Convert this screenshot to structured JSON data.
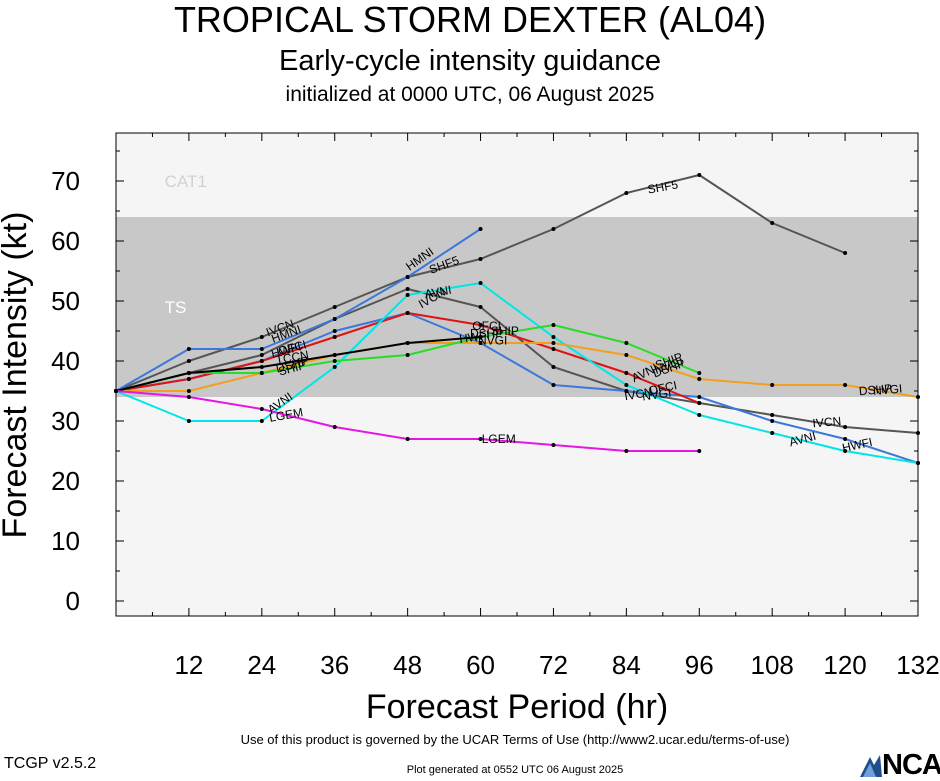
{
  "header": {
    "title": "TROPICAL STORM DEXTER (AL04)",
    "subtitle": "Early-cycle intensity guidance",
    "init": "initialized at 0000 UTC, 06 August 2025"
  },
  "footer": {
    "terms": "Use of this product is governed by the UCAR Terms of Use (http://www2.ucar.edu/terms-of-use)",
    "generated": "Plot generated at 0552 UTC   06 August 2025",
    "version": "TCGP v2.5.2",
    "logo": "NCAR"
  },
  "colors": {
    "ts_band": "#c8c8c8",
    "plot_bg": "#f5f5f5",
    "band_text": "#ffffff",
    "cat1_text": "#d2d2d2"
  },
  "chart_data": {
    "type": "line",
    "xlabel": "Forecast Period (hr)",
    "ylabel": "Forecast Intensity (kt)",
    "xlim": [
      0,
      132
    ],
    "ylim": [
      -2.5,
      78
    ],
    "xticks": [
      12,
      24,
      36,
      48,
      60,
      72,
      84,
      96,
      108,
      120,
      132
    ],
    "yticks": [
      0,
      10,
      20,
      30,
      40,
      50,
      60,
      70
    ],
    "grid": false,
    "bands": [
      {
        "label": "TS",
        "from": 34,
        "to": 64,
        "color": "#c8c8c8",
        "label_at": [
          8,
          49
        ]
      },
      {
        "label": "CAT1",
        "from": 64,
        "to": 78,
        "color": "#f5f5f5",
        "label_at": [
          8,
          70
        ]
      }
    ],
    "series": [
      {
        "name": "SHF5",
        "color": "#555555",
        "points": [
          [
            0,
            35
          ],
          [
            12,
            40
          ],
          [
            24,
            44
          ],
          [
            36,
            49
          ],
          [
            48,
            54
          ],
          [
            60,
            57
          ],
          [
            72,
            62
          ],
          [
            84,
            68
          ],
          [
            96,
            71
          ],
          [
            108,
            63
          ],
          [
            120,
            58
          ]
        ],
        "labels": [
          {
            "x": 54,
            "y": 56,
            "rot": -20
          },
          {
            "x": 90,
            "y": 69,
            "rot": -10
          }
        ]
      },
      {
        "name": "IVCN",
        "color": "#555555",
        "points": [
          [
            0,
            35
          ],
          [
            12,
            38
          ],
          [
            24,
            41
          ],
          [
            36,
            47
          ],
          [
            48,
            52
          ],
          [
            60,
            49
          ],
          [
            72,
            39
          ],
          [
            84,
            35
          ],
          [
            96,
            33
          ],
          [
            108,
            31
          ],
          [
            120,
            29
          ],
          [
            132,
            28
          ]
        ],
        "labels": [
          {
            "x": 27,
            "y": 45.5,
            "rot": -20
          },
          {
            "x": 52,
            "y": 50.5,
            "rot": -30
          },
          {
            "x": 86,
            "y": 34.5,
            "rot": -10
          },
          {
            "x": 117,
            "y": 29.8,
            "rot": -5
          }
        ]
      },
      {
        "name": "HMNI",
        "color": "#3c78dc",
        "points": [
          [
            0,
            35
          ],
          [
            12,
            42
          ],
          [
            24,
            42
          ],
          [
            36,
            47
          ],
          [
            48,
            54
          ],
          [
            60,
            62
          ]
        ],
        "labels": [
          {
            "x": 28,
            "y": 44.5,
            "rot": -20
          },
          {
            "x": 50,
            "y": 57,
            "rot": -35
          }
        ]
      },
      {
        "name": "HWFI",
        "color": "#3c78dc",
        "points": [
          [
            0,
            35
          ],
          [
            12,
            37
          ],
          [
            24,
            40
          ],
          [
            36,
            45
          ],
          [
            48,
            48
          ],
          [
            60,
            43
          ],
          [
            72,
            36
          ],
          [
            84,
            35
          ],
          [
            96,
            34
          ],
          [
            108,
            30
          ],
          [
            120,
            27
          ],
          [
            132,
            23
          ]
        ],
        "labels": [
          {
            "x": 28,
            "y": 41.8,
            "rot": -15
          },
          {
            "x": 59,
            "y": 44,
            "rot": -8
          },
          {
            "x": 122,
            "y": 26,
            "rot": -12
          }
        ]
      },
      {
        "name": "OFCI",
        "color": "#dc1414",
        "points": [
          [
            0,
            35
          ],
          [
            12,
            37
          ],
          [
            24,
            40
          ],
          [
            36,
            44
          ],
          [
            48,
            48
          ],
          [
            60,
            46
          ],
          [
            72,
            42
          ],
          [
            84,
            38
          ],
          [
            96,
            33
          ]
        ],
        "labels": [
          {
            "x": 29,
            "y": 42.2,
            "rot": -15
          },
          {
            "x": 61,
            "y": 45.8,
            "rot": 0
          },
          {
            "x": 90,
            "y": 35.5,
            "rot": -12
          }
        ]
      },
      {
        "name": "AVNI",
        "color": "#00e6e6",
        "points": [
          [
            0,
            35
          ],
          [
            12,
            30
          ],
          [
            24,
            30
          ],
          [
            36,
            39
          ],
          [
            48,
            51
          ],
          [
            60,
            53
          ],
          [
            72,
            44
          ],
          [
            84,
            36
          ],
          [
            96,
            31
          ],
          [
            108,
            28
          ],
          [
            120,
            25
          ],
          [
            132,
            23
          ]
        ],
        "labels": [
          {
            "x": 27,
            "y": 33,
            "rot": -35
          },
          {
            "x": 53,
            "y": 51.5,
            "rot": -10
          },
          {
            "x": 87,
            "y": 38,
            "rot": -25
          },
          {
            "x": 113,
            "y": 27,
            "rot": -15
          }
        ]
      },
      {
        "name": "DSHP",
        "color": "#f0a01e",
        "points": [
          [
            0,
            35
          ],
          [
            12,
            35
          ],
          [
            24,
            38
          ],
          [
            36,
            41
          ],
          [
            48,
            43
          ],
          [
            60,
            43
          ],
          [
            72,
            43
          ],
          [
            84,
            41
          ],
          [
            96,
            37
          ],
          [
            108,
            36
          ],
          [
            120,
            36
          ],
          [
            132,
            34
          ]
        ],
        "labels": [
          {
            "x": 29,
            "y": 39.4,
            "rot": -15
          },
          {
            "x": 61,
            "y": 44.6,
            "rot": 0
          },
          {
            "x": 91,
            "y": 38.8,
            "rot": -20
          },
          {
            "x": 125,
            "y": 35.2,
            "rot": -5
          }
        ]
      },
      {
        "name": "SHIP",
        "color": "#28dc28",
        "points": [
          [
            0,
            35
          ],
          [
            12,
            38
          ],
          [
            24,
            38
          ],
          [
            36,
            40
          ],
          [
            48,
            41
          ],
          [
            60,
            44
          ],
          [
            72,
            46
          ],
          [
            84,
            43
          ],
          [
            96,
            38
          ]
        ],
        "labels": [
          {
            "x": 29,
            "y": 38.8,
            "rot": -15
          },
          {
            "x": 64,
            "y": 45,
            "rot": 0
          },
          {
            "x": 91,
            "y": 40,
            "rot": -20
          }
        ]
      },
      {
        "name": "TCCN",
        "color": "#000000",
        "points": [
          [
            0,
            35
          ],
          [
            12,
            38
          ],
          [
            24,
            39
          ],
          [
            36,
            41
          ],
          [
            48,
            43
          ],
          [
            60,
            44
          ]
        ],
        "labels": [
          {
            "x": 29,
            "y": 40.6,
            "rot": -10
          }
        ]
      },
      {
        "name": "NVGI",
        "color": "#000000",
        "points": [],
        "labels": [
          {
            "x": 62,
            "y": 43.4,
            "rot": 0
          },
          {
            "x": 91,
            "y": 39.2,
            "rot": -18
          },
          {
            "x": 127,
            "y": 35.2,
            "rot": -5
          },
          {
            "x": 89,
            "y": 34.4,
            "rot": -8
          }
        ]
      },
      {
        "name": "LGEM",
        "color": "#e614e6",
        "points": [
          [
            0,
            35
          ],
          [
            12,
            34
          ],
          [
            24,
            32
          ],
          [
            36,
            29
          ],
          [
            48,
            27
          ],
          [
            60,
            27
          ],
          [
            72,
            26
          ],
          [
            84,
            25
          ],
          [
            96,
            25
          ]
        ],
        "labels": [
          {
            "x": 28,
            "y": 31,
            "rot": -10
          },
          {
            "x": 63,
            "y": 27,
            "rot": 0
          }
        ]
      }
    ]
  }
}
